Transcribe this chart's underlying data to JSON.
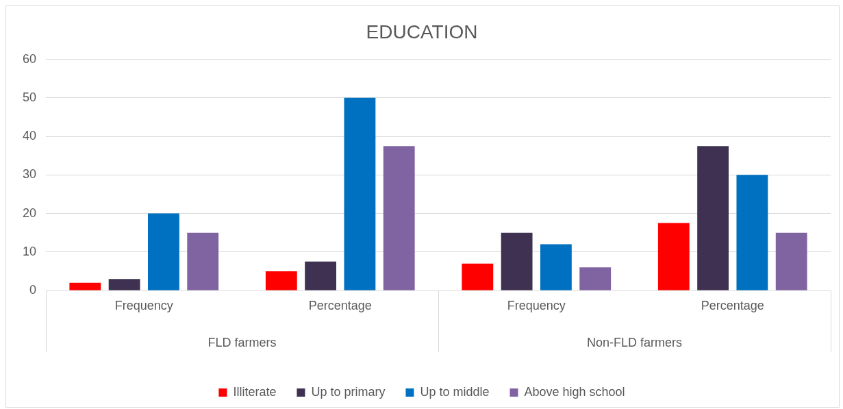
{
  "chart_data": {
    "type": "bar",
    "title": "EDUCATION",
    "categories": [
      "Frequency",
      "Percentage",
      "Frequency",
      "Percentage"
    ],
    "series": [
      {
        "name": "Illiterate",
        "color": "#ff0000",
        "values": [
          2,
          5,
          7,
          17.5
        ]
      },
      {
        "name": "Up to primary",
        "color": "#3e3151",
        "values": [
          3,
          7.5,
          15,
          37.5
        ]
      },
      {
        "name": "Up to middle",
        "color": "#0070c0",
        "values": [
          20,
          50,
          12,
          30
        ]
      },
      {
        "name": "Above high school",
        "color": "#8064a2",
        "values": [
          15,
          37.5,
          6,
          15
        ]
      }
    ],
    "annotations": [
      "FLD farmers",
      "Non-FLD farmers"
    ],
    "ylim": [
      0,
      60
    ],
    "yticks": [
      0,
      10,
      20,
      30,
      40,
      50,
      60
    ],
    "grid": "y",
    "legend": "bottom"
  }
}
